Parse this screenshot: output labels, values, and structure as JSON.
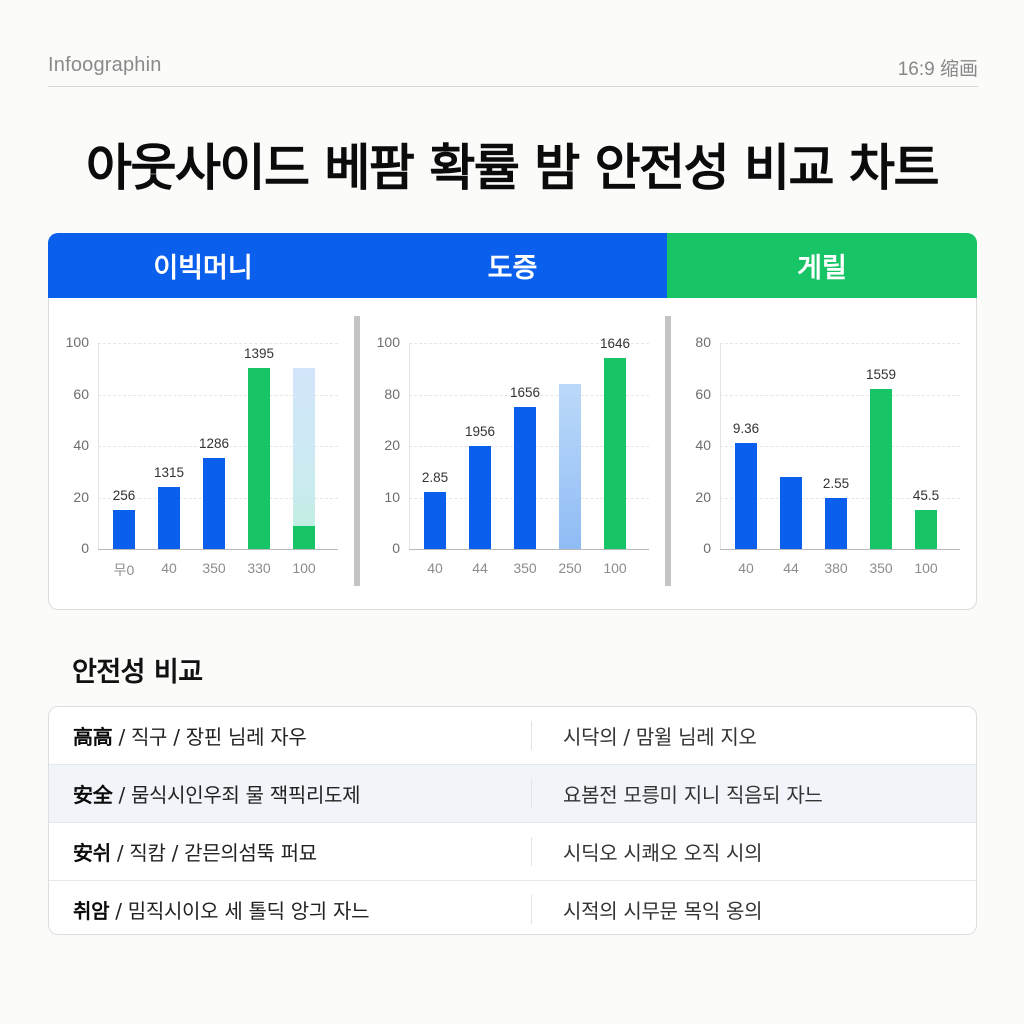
{
  "header": {
    "brand": "Infoographin",
    "ratio": "16:9 缩画"
  },
  "title": "아웃사이드 베팜 확률 밤 안전성 비교 차트",
  "tabs": [
    {
      "label": "이빅머니",
      "color": "#0a5fec"
    },
    {
      "label": "도증",
      "color": "#0a5fec"
    },
    {
      "label": "게릴",
      "color": "#17c466"
    }
  ],
  "colors": {
    "blue": "#0a5fec",
    "green": "#17c466",
    "light_blue": "#a9cdf7"
  },
  "chart_data": [
    {
      "type": "bar",
      "title": "이빅머니",
      "categories": [
        "무0",
        "40",
        "350",
        "330",
        "100"
      ],
      "values": [
        19,
        30,
        44,
        88,
        88
      ],
      "value_labels": [
        "256",
        "1315",
        "1286",
        "1395",
        ""
      ],
      "bar_colors": [
        "blue",
        "blue",
        "blue",
        "green",
        "gradient_light_blue_green"
      ],
      "bar_fill_note": "last bar: light blue gradient to 88 with solid green segment to 11",
      "last_bar_solid_value": 11,
      "yticks": [
        "0",
        "20",
        "40",
        "60",
        "100"
      ],
      "ylim": [
        0,
        100
      ],
      "grid": true
    },
    {
      "type": "bar",
      "title": "도증",
      "categories": [
        "40",
        "44",
        "350",
        "250",
        "100"
      ],
      "values": [
        11,
        20,
        27.5,
        32,
        37
      ],
      "value_labels": [
        "2.85",
        "1956",
        "1656",
        "",
        "1646"
      ],
      "bar_colors": [
        "blue",
        "blue",
        "blue",
        "light_blue",
        "green"
      ],
      "yticks": [
        "0",
        "10",
        "20",
        "80",
        "100"
      ],
      "ylim": [
        0,
        40
      ],
      "grid": true
    },
    {
      "type": "bar",
      "title": "게릴",
      "categories": [
        "40",
        "44",
        "380",
        "350",
        "100"
      ],
      "values": [
        41,
        28,
        20,
        62,
        15
      ],
      "value_labels": [
        "9.36",
        "",
        "2.55",
        "1559",
        "45.5"
      ],
      "bar_colors": [
        "blue",
        "blue",
        "blue",
        "green",
        "green"
      ],
      "yticks": [
        "0",
        "20",
        "40",
        "60",
        "80"
      ],
      "ylim": [
        0,
        80
      ],
      "grid": true
    }
  ],
  "section": {
    "title": "안전성 비교"
  },
  "table": {
    "rows": [
      {
        "key": "高高",
        "left": " / 직구 / 장핀 님레 자우",
        "right": "시닥의 /  맘윌 님레 지오"
      },
      {
        "key": "安全",
        "left": " / 뭄식시인우죄 물 잭픽리도제",
        "right": "요봄전 모릉미 지니 직음되 자느"
      },
      {
        "key": "安쉬",
        "left": " / 직캄 / 갇믄의섬뚝 퍼묘",
        "right": "시딕오 시쾌오 오직 시의"
      },
      {
        "key": "취암",
        "left": " / 밈직시이오 세 톨딕 앙긔 자느",
        "right": "시적의 시무문 목익 옹의"
      }
    ]
  }
}
